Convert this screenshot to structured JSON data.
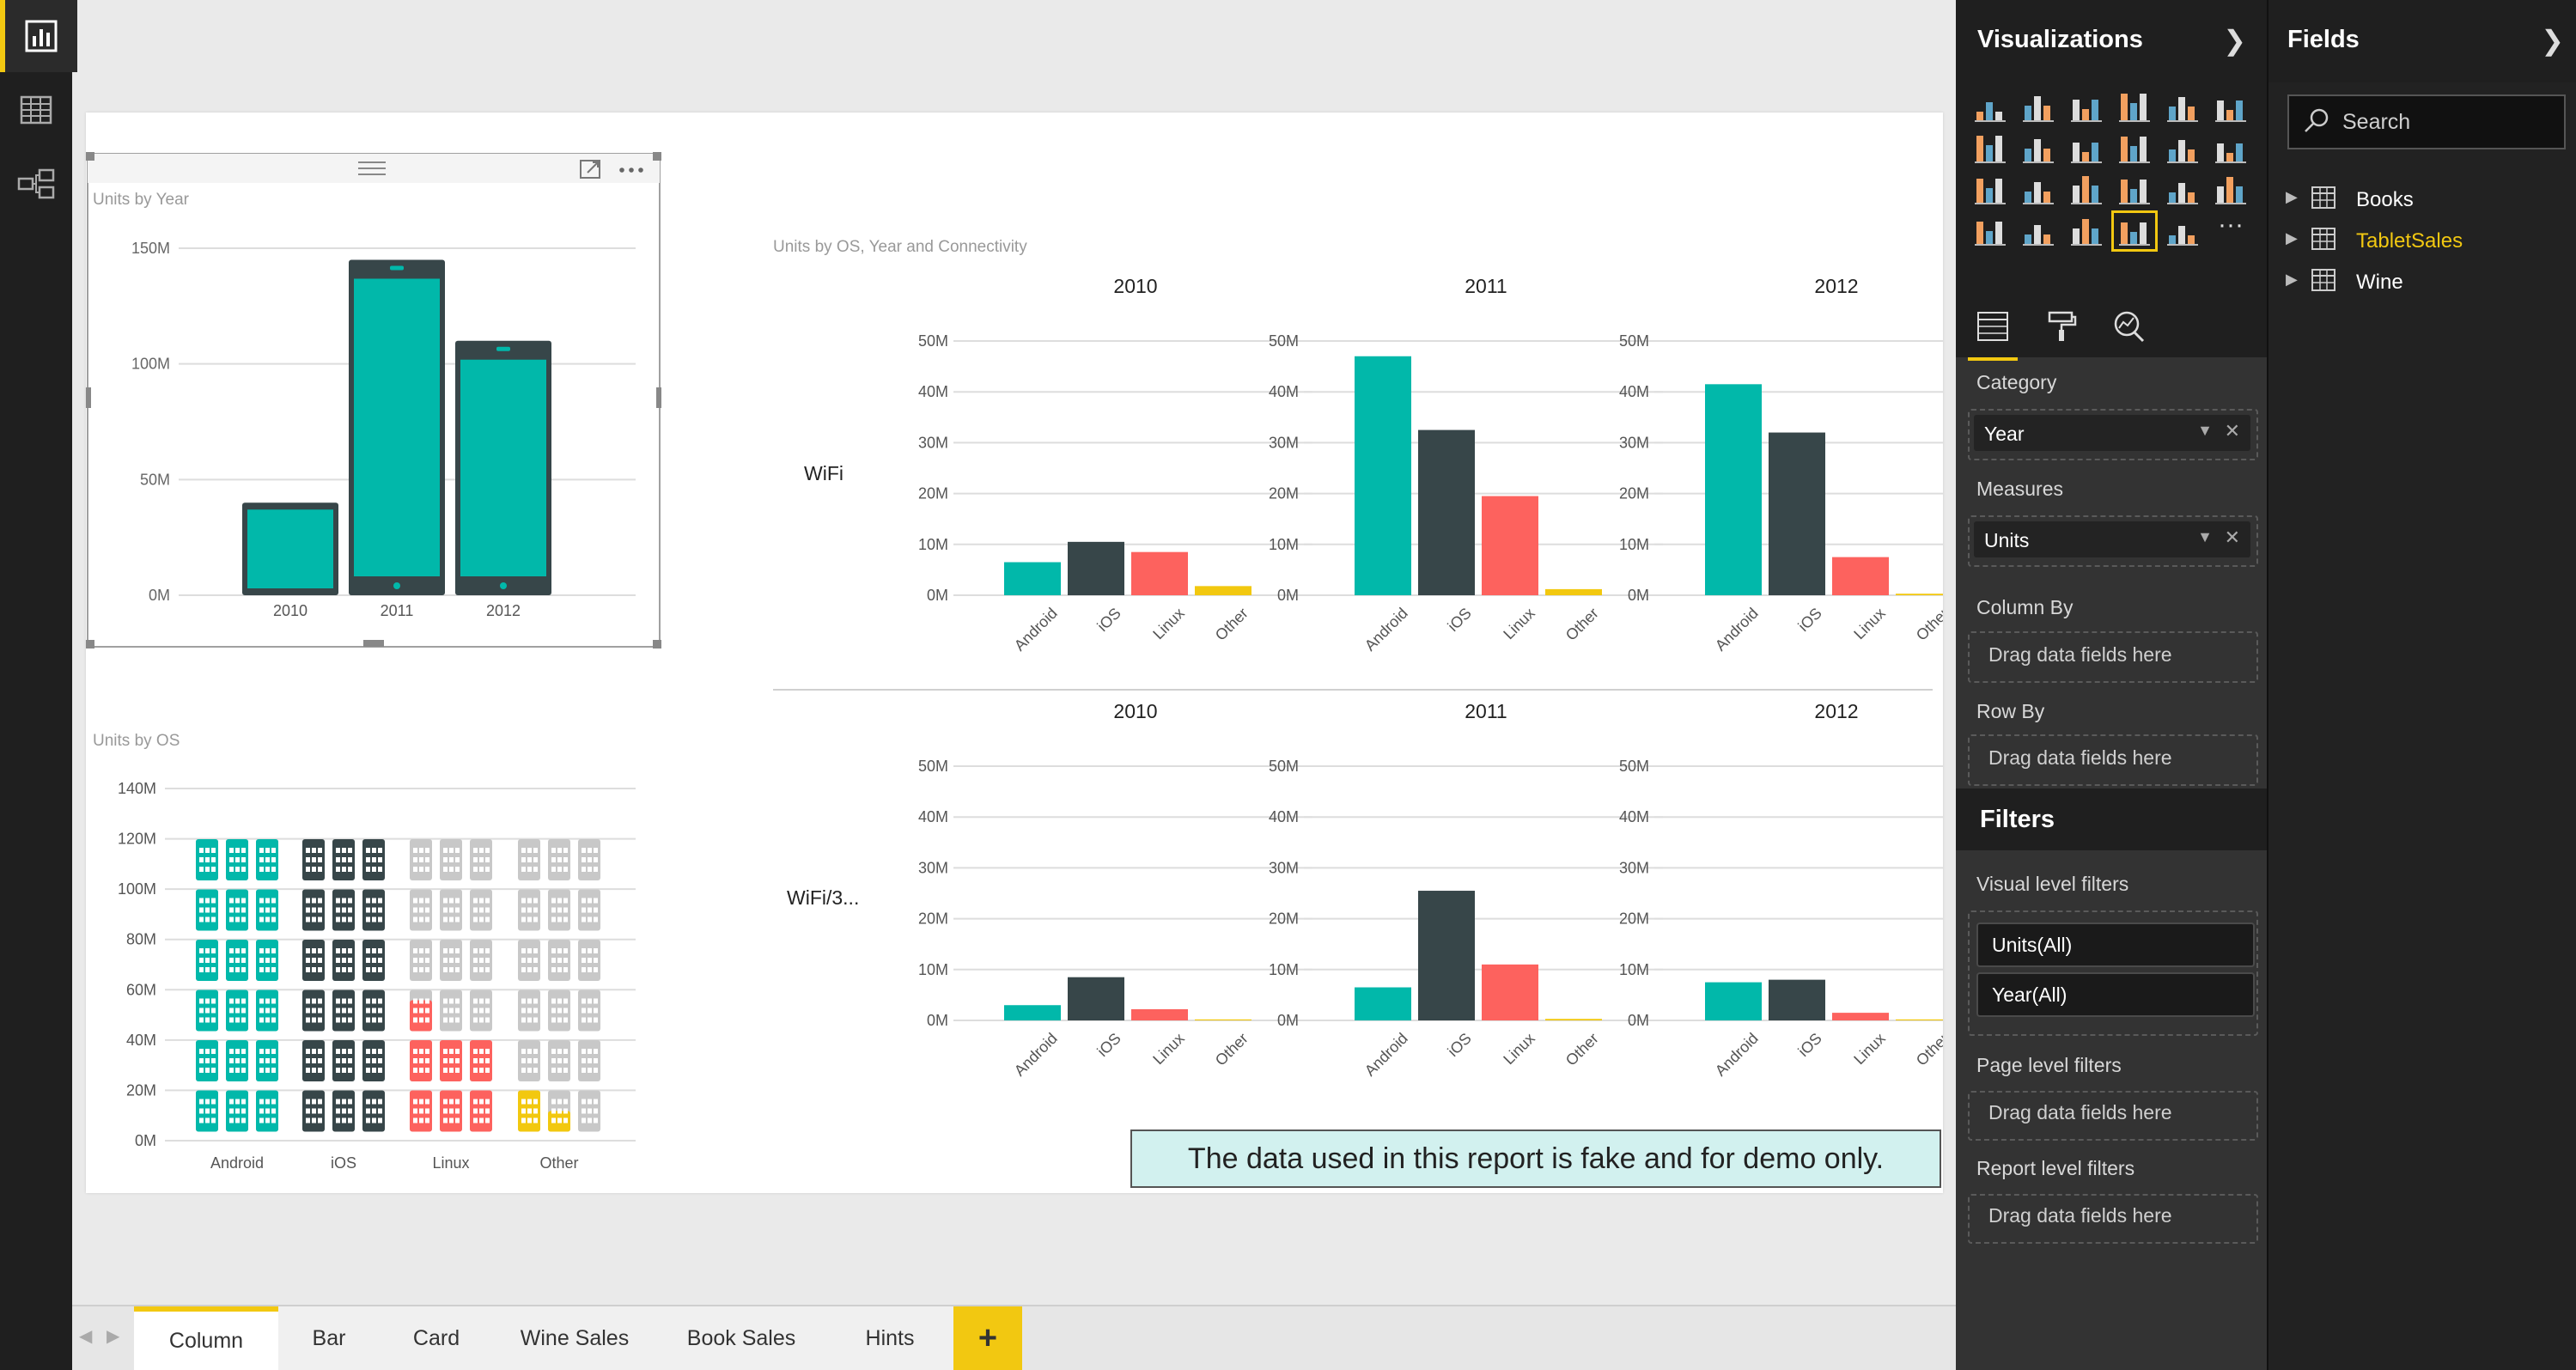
{
  "report": {
    "visual_titles": {
      "units_by_year": "Units by Year",
      "units_by_os_year_conn": "Units by OS, Year and Connectivity",
      "units_by_os": "Units by OS"
    },
    "note": "The data used in this report is fake and for demo only."
  },
  "visualizations_pane": {
    "title": "Visualizations",
    "wells": {
      "category_label": "Category",
      "category_value": "Year",
      "measures_label": "Measures",
      "measures_value": "Units",
      "column_by_label": "Column By",
      "row_by_label": "Row By",
      "drag_hint": "Drag data fields here"
    },
    "filters": {
      "title": "Filters",
      "visual_level": "Visual level filters",
      "chips": [
        "Units(All)",
        "Year(All)"
      ],
      "page_level": "Page level filters",
      "report_level": "Report level filters"
    }
  },
  "fields_pane": {
    "title": "Fields",
    "search_placeholder": "Search",
    "tables": [
      {
        "name": "Books",
        "color": "#ffffff"
      },
      {
        "name": "TabletSales",
        "color": "#f2c811"
      },
      {
        "name": "Wine",
        "color": "#ffffff"
      }
    ]
  },
  "page_tabs": [
    "Column",
    "Bar",
    "Card",
    "Wine Sales",
    "Book Sales",
    "Hints"
  ],
  "active_tab": "Column",
  "colors": {
    "Android": "#01b8aa",
    "iOS": "#374649",
    "Linux": "#fd625e",
    "Other": "#f2c80f",
    "inactive_icon": "#c8c8c8",
    "accent": "#f2c811"
  },
  "chart_data": [
    {
      "type": "bar",
      "title": "Units by Year",
      "categories": [
        "2010",
        "2011",
        "2012"
      ],
      "values": [
        40,
        145,
        110
      ],
      "ylim": [
        0,
        150
      ],
      "yticks": [
        "0M",
        "50M",
        "100M",
        "150M"
      ],
      "grid": true
    },
    {
      "type": "bar",
      "title": "Units by OS, Year and Connectivity",
      "rows": [
        "WiFi",
        "WiFi/3..."
      ],
      "columns": [
        "2010",
        "2011",
        "2012"
      ],
      "categories": [
        "Android",
        "iOS",
        "Linux",
        "Other"
      ],
      "ylim": [
        0,
        50
      ],
      "yticks": [
        "0M",
        "10M",
        "20M",
        "30M",
        "40M",
        "50M"
      ],
      "panels": [
        {
          "row": "WiFi",
          "column": "2010",
          "values": [
            6.5,
            10.5,
            8.5,
            1.8
          ]
        },
        {
          "row": "WiFi",
          "column": "2011",
          "values": [
            47,
            32.5,
            19.5,
            1.2
          ]
        },
        {
          "row": "WiFi",
          "column": "2012",
          "values": [
            41.5,
            32,
            7.5,
            0.3
          ]
        },
        {
          "row": "WiFi/3...",
          "column": "2010",
          "values": [
            3,
            8.5,
            2.2,
            0.2
          ]
        },
        {
          "row": "WiFi/3...",
          "column": "2011",
          "values": [
            6.5,
            25.5,
            11,
            0.3
          ]
        },
        {
          "row": "WiFi/3...",
          "column": "2012",
          "values": [
            7.5,
            8,
            1.5,
            0.2
          ]
        }
      ]
    },
    {
      "type": "bar",
      "title": "Units by OS",
      "categories": [
        "Android",
        "iOS",
        "Linux",
        "Other"
      ],
      "values": [
        125,
        125,
        45,
        10
      ],
      "ylim": [
        0,
        140
      ],
      "yticks": [
        "0M",
        "20M",
        "40M",
        "60M",
        "80M",
        "100M",
        "120M",
        "140M"
      ]
    }
  ]
}
